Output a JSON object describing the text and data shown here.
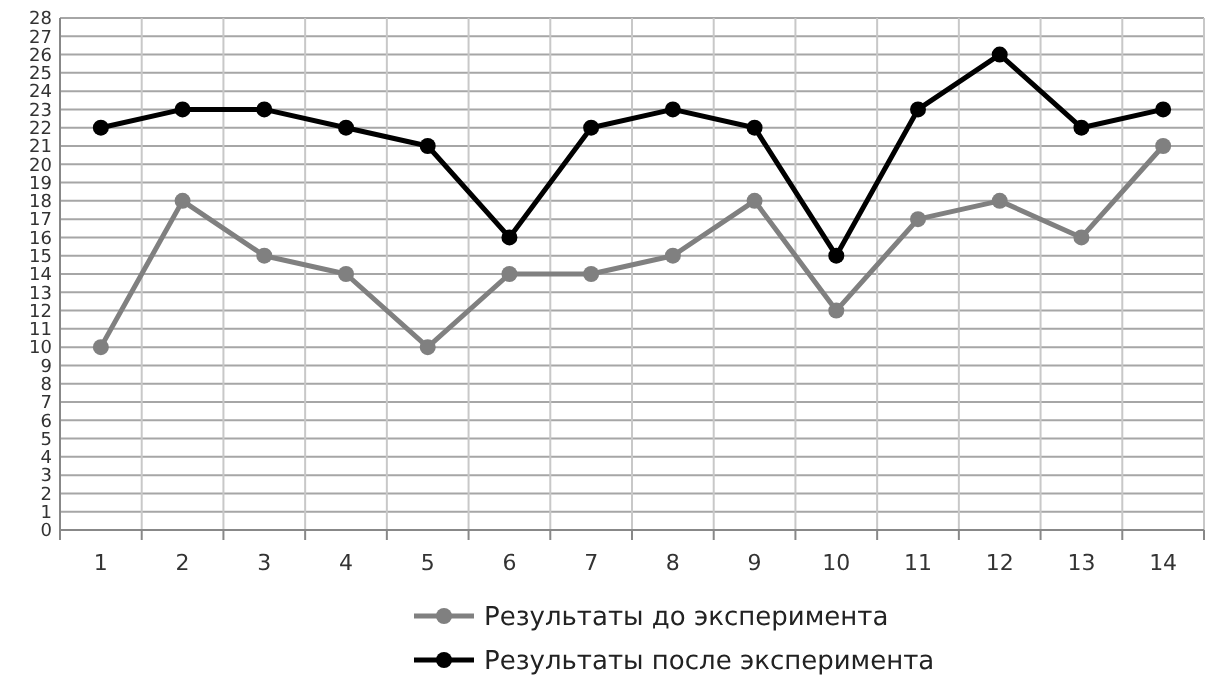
{
  "chart_data": {
    "type": "line",
    "categories": [
      "1",
      "2",
      "3",
      "4",
      "5",
      "6",
      "7",
      "8",
      "9",
      "10",
      "11",
      "12",
      "13",
      "14"
    ],
    "series": [
      {
        "name": "Результаты до эксперимента",
        "color": "#808080",
        "values": [
          10,
          18,
          15,
          14,
          10,
          14,
          14,
          15,
          18,
          12,
          17,
          18,
          16,
          21
        ]
      },
      {
        "name": "Результаты после эксперимента",
        "color": "#000000",
        "values": [
          22,
          23,
          23,
          22,
          21,
          16,
          22,
          23,
          22,
          15,
          23,
          26,
          22,
          23
        ]
      }
    ],
    "ylim": [
      0,
      28
    ],
    "yticks": [
      0,
      1,
      2,
      3,
      4,
      5,
      6,
      7,
      8,
      9,
      10,
      11,
      12,
      13,
      14,
      15,
      16,
      17,
      18,
      19,
      20,
      21,
      22,
      23,
      24,
      25,
      26,
      27,
      28
    ],
    "grid": true,
    "legend": "bottom",
    "marker": "circle",
    "line_style": "solid"
  }
}
